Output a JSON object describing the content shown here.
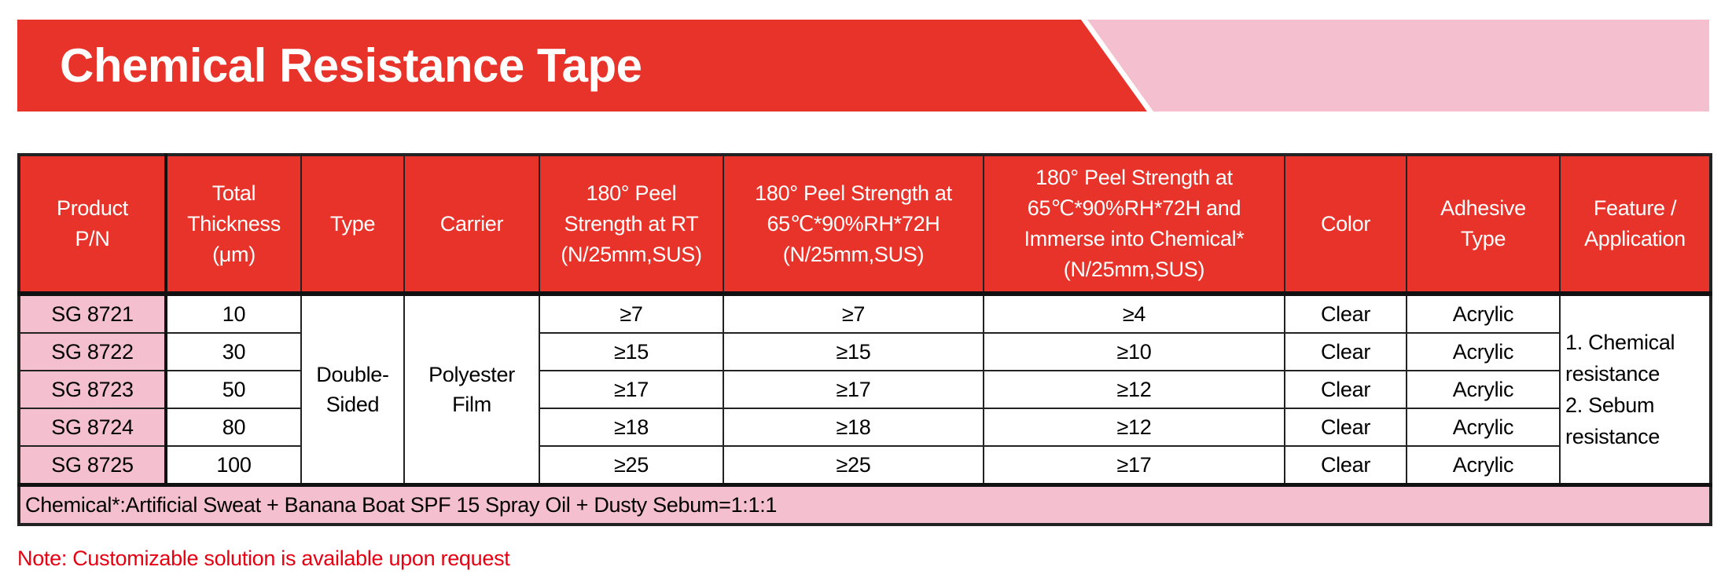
{
  "title": "Chemical Resistance Tape",
  "colors": {
    "accent_red": "#E8332A",
    "pink": "#F4C0CF",
    "note_red": "#E60012"
  },
  "table": {
    "headers": [
      "Product\nP/N",
      "Total\nThickness\n(μm)",
      "Type",
      "Carrier",
      "180° Peel\nStrength at RT\n(N/25mm,SUS)",
      "180° Peel Strength at\n65℃*90%RH*72H\n(N/25mm,SUS)",
      "180° Peel Strength at\n65℃*90%RH*72H and\nImmerse into Chemical*\n(N/25mm,SUS)",
      "Color",
      "Adhesive\nType",
      "Feature /\nApplication"
    ],
    "type": "Double-\nSided",
    "carrier": "Polyester\nFilm",
    "feature": "1. Chemical\nresistance\n2. Sebum\nresistance",
    "rows": [
      {
        "pn": "SG 8721",
        "thickness": "10",
        "peel_rt": "≥7",
        "peel_65": "≥7",
        "peel_chem": "≥4",
        "color": "Clear",
        "adhesive": "Acrylic"
      },
      {
        "pn": "SG 8722",
        "thickness": "30",
        "peel_rt": "≥15",
        "peel_65": "≥15",
        "peel_chem": "≥10",
        "color": "Clear",
        "adhesive": "Acrylic"
      },
      {
        "pn": "SG 8723",
        "thickness": "50",
        "peel_rt": "≥17",
        "peel_65": "≥17",
        "peel_chem": "≥12",
        "color": "Clear",
        "adhesive": "Acrylic"
      },
      {
        "pn": "SG 8724",
        "thickness": "80",
        "peel_rt": "≥18",
        "peel_65": "≥18",
        "peel_chem": "≥12",
        "color": "Clear",
        "adhesive": "Acrylic"
      },
      {
        "pn": "SG 8725",
        "thickness": "100",
        "peel_rt": "≥25",
        "peel_65": "≥25",
        "peel_chem": "≥17",
        "color": "Clear",
        "adhesive": "Acrylic"
      }
    ],
    "footnote": "Chemical*:Artificial Sweat + Banana Boat SPF 15 Spray Oil + Dusty Sebum=1:1:1"
  },
  "note": "Note: Customizable solution is available upon request"
}
